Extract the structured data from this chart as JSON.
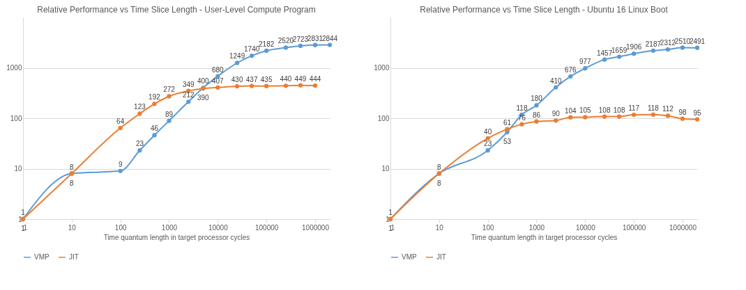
{
  "chart_data": [
    {
      "type": "line",
      "title": "Relative Performance vs Time Slice Length - User-Level Compute Program",
      "xlabel": "Time quantum length in target processor cycles",
      "series": [
        {
          "name": "VMP",
          "color": "#5b9bd5",
          "x": [
            1,
            10,
            100,
            250,
            500,
            1000,
            2500,
            5000,
            10000,
            25000,
            50000,
            100000,
            250000,
            500000,
            1000000,
            2000000
          ],
          "values": [
            1,
            8,
            9,
            23,
            46,
            89,
            212,
            400,
            680,
            1249,
            1740,
            2182,
            2520,
            2723,
            2831,
            2844
          ]
        },
        {
          "name": "JIT",
          "color": "#ed7d31",
          "x": [
            1,
            10,
            100,
            250,
            500,
            1000,
            2500,
            5000,
            10000,
            25000,
            50000,
            100000,
            250000,
            500000,
            1000000
          ],
          "values": [
            1,
            8,
            64,
            123,
            192,
            272,
            349,
            390,
            407,
            430,
            437,
            435,
            440,
            449,
            444
          ]
        }
      ],
      "xlim": [
        1,
        2000000
      ],
      "xticks": [
        1,
        10,
        100,
        1000,
        10000,
        100000,
        1000000
      ],
      "ylim": [
        1,
        10000
      ],
      "yticks": [
        1,
        10,
        100,
        1000
      ],
      "log": "xy",
      "grid": "y",
      "legend": "bottom",
      "marker": "circle",
      "data_labels": true
    },
    {
      "type": "line",
      "title": "Relative Performance vs Time Slice Length - Ubuntu 16 Linux Boot",
      "xlabel": "Time quantum length in target processor cycles",
      "series": [
        {
          "name": "VMP",
          "color": "#5b9bd5",
          "x": [
            1,
            10,
            100,
            250,
            500,
            1000,
            2500,
            5000,
            10000,
            25000,
            50000,
            100000,
            250000,
            500000,
            1000000,
            2000000
          ],
          "values": [
            1,
            8,
            23,
            53,
            118,
            180,
            410,
            676,
            977,
            1457,
            1659,
            1906,
            2187,
            2312,
            2510,
            2491
          ]
        },
        {
          "name": "JIT",
          "color": "#ed7d31",
          "x": [
            1,
            10,
            100,
            250,
            500,
            1000,
            2500,
            5000,
            10000,
            25000,
            50000,
            100000,
            250000,
            500000,
            1000000,
            2000000
          ],
          "values": [
            1,
            8,
            40,
            61,
            76,
            86,
            90,
            104,
            105,
            108,
            108,
            117,
            118,
            112,
            98,
            95
          ]
        }
      ],
      "xlim": [
        1,
        2000000
      ],
      "xticks": [
        1,
        10,
        100,
        1000,
        10000,
        100000,
        1000000
      ],
      "ylim": [
        1,
        10000
      ],
      "yticks": [
        1,
        10,
        100,
        1000
      ],
      "log": "xy",
      "grid": "y",
      "legend": "bottom",
      "marker": "circle",
      "data_labels": true
    }
  ]
}
